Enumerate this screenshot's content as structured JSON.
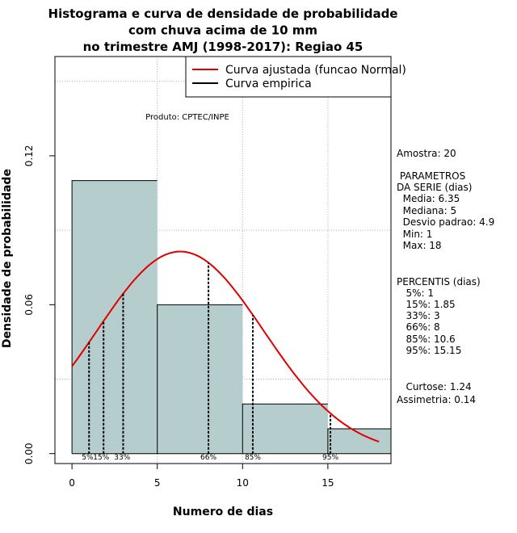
{
  "chart_data": {
    "type": "bar",
    "title": [
      "Histograma e curva de densidade de probabilidade",
      "com chuva acima de 10 mm",
      "no trimestre AMJ (1998-2017): Regiao 45"
    ],
    "xlabel": "Numero de dias",
    "ylabel": "Densidade de probabilidade",
    "xlim": [
      -1,
      18.7
    ],
    "ylim": [
      -0.004,
      0.16
    ],
    "x_ticks": [
      0,
      5,
      10,
      15
    ],
    "y_ticks": [
      0.0,
      0.06,
      0.12
    ],
    "y_tick_labels": [
      "0.00",
      "0.06",
      "0.12"
    ],
    "grid": true,
    "bar_color": "#b5cdcc",
    "curve_color": "#e00000",
    "bins": [
      {
        "start": 0,
        "end": 5,
        "density": 0.11
      },
      {
        "start": 5,
        "end": 10,
        "density": 0.06
      },
      {
        "start": 10,
        "end": 15,
        "density": 0.02
      },
      {
        "start": 15,
        "end": 20,
        "density": 0.01
      }
    ],
    "normal_fit": {
      "mean": 6.35,
      "sd": 4.9,
      "x_range": [
        0,
        18
      ]
    },
    "percentile_lines": [
      {
        "label": "5%",
        "x": 1
      },
      {
        "label": "15%",
        "x": 1.85
      },
      {
        "label": "33%",
        "x": 3
      },
      {
        "label": "66%",
        "x": 8
      },
      {
        "label": "85%",
        "x": 10.6
      },
      {
        "label": "95%",
        "x": 15.15
      }
    ],
    "legend": {
      "position": "top-right",
      "entries": [
        {
          "label": "Curva ajustada (funcao Normal)",
          "color": "#e00000"
        },
        {
          "label": "Curva empirica",
          "color": "#000000"
        }
      ]
    },
    "annotation": "Produto: CPTEC/INPE"
  },
  "side_panel": {
    "amostra": "Amostra: 20",
    "param_title_1": " PARAMETROS",
    "param_title_2": "DA SERIE (dias)",
    "media": "  Media: 6.35",
    "mediana": "  Mediana: 5",
    "desvio": "  Desvio padrao: 4.9",
    "min": "  Min: 1",
    "max": "  Max: 18",
    "perc_title": "PERCENTIS (dias)",
    "p5": "   5%: 1",
    "p15": "   15%: 1.85",
    "p33": "   33%: 3",
    "p66": "   66%: 8",
    "p85": "   85%: 10.6",
    "p95": "   95%: 15.15",
    "curtose": "   Curtose: 1.24",
    "assimetria": "Assimetria: 0.14"
  }
}
